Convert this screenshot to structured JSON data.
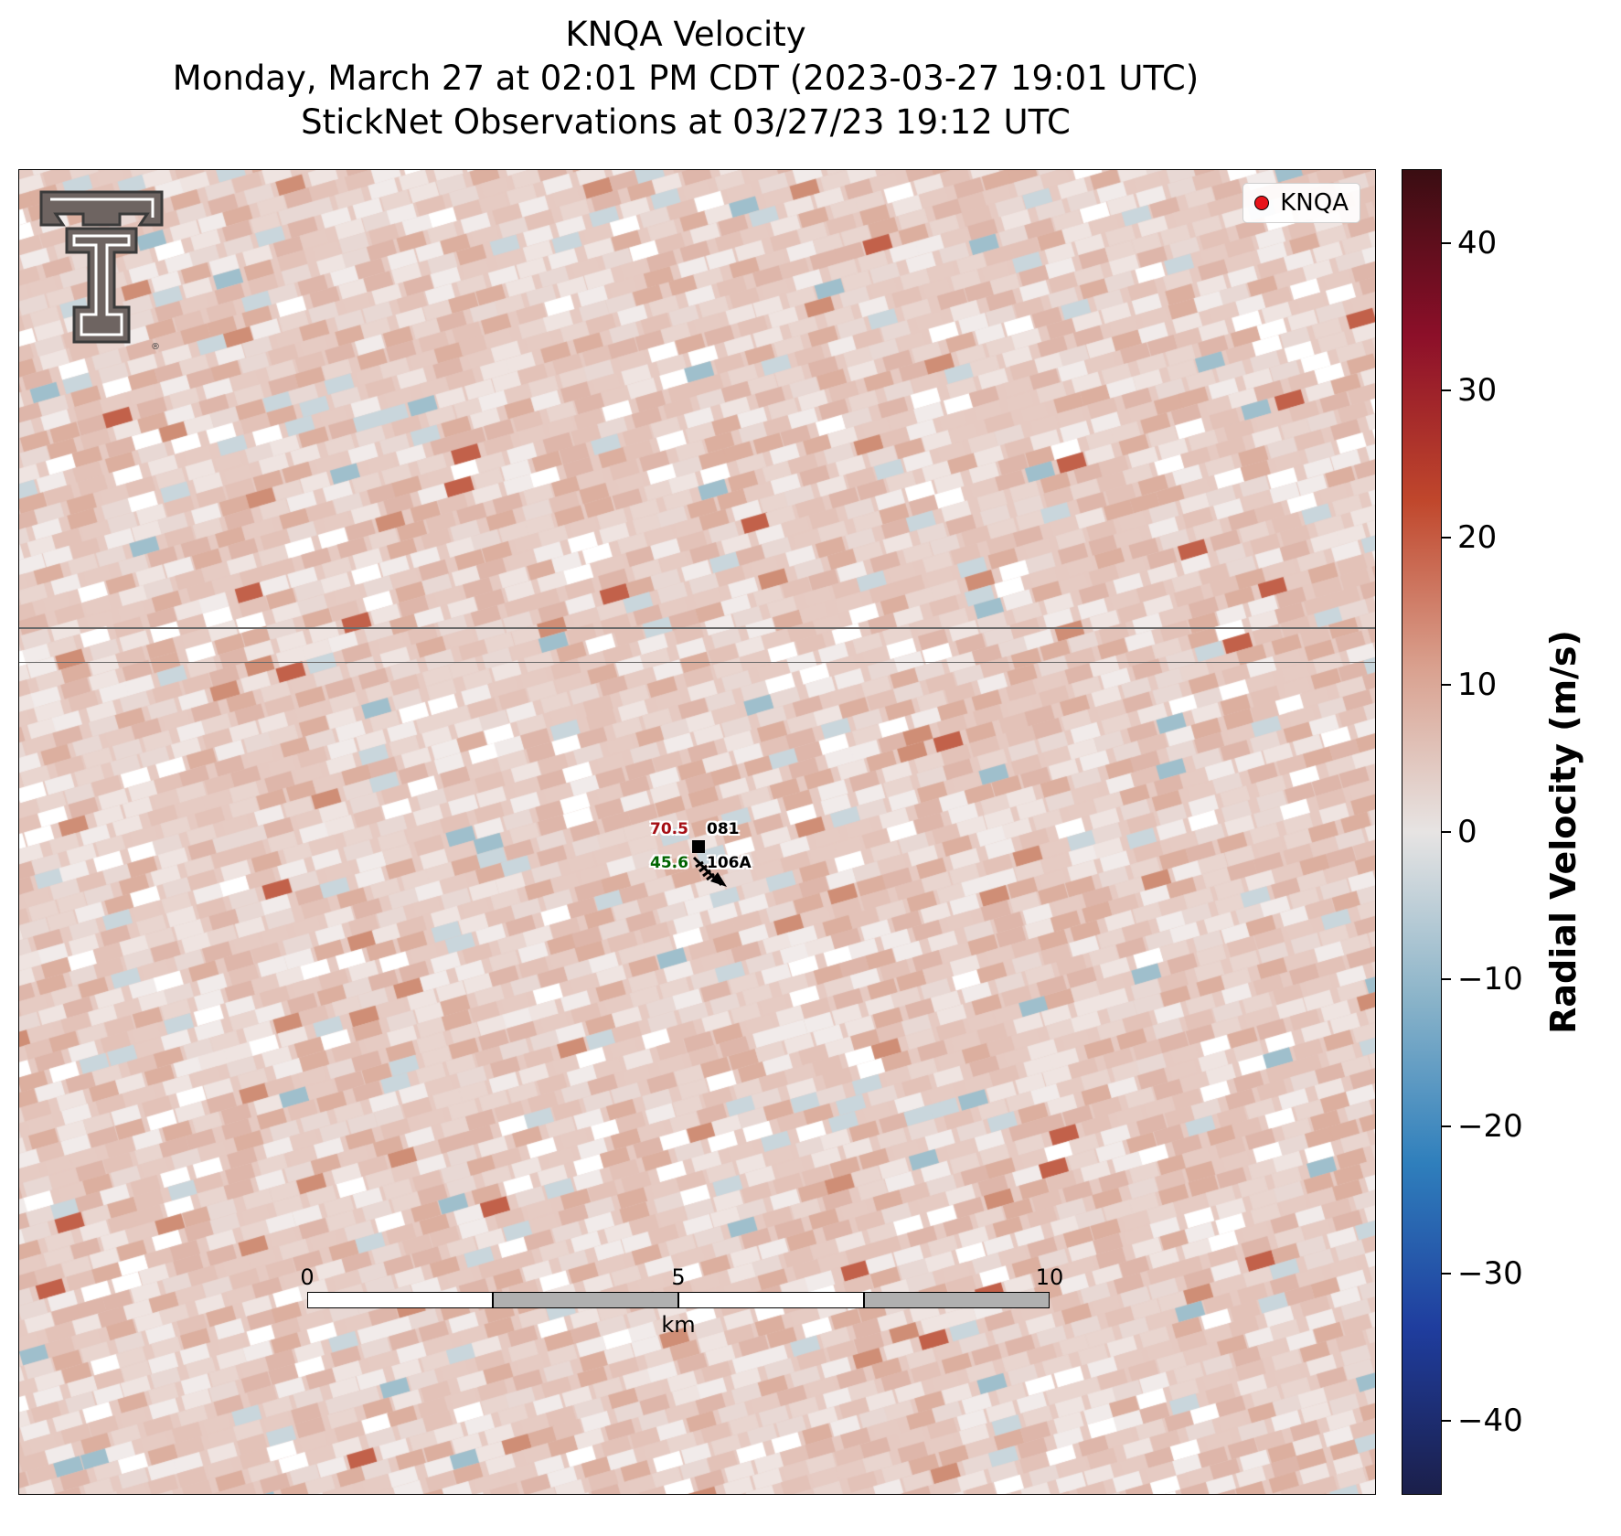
{
  "title": {
    "line1": "KNQA Velocity",
    "line2": "Monday, March 27 at 02:01 PM CDT (2023-03-27 19:01 UTC)",
    "line3": "StickNet Observations at 03/27/23 19:12 UTC"
  },
  "legend": {
    "label": "KNQA",
    "marker_color": "#e8131a"
  },
  "logo": {
    "name": "texas-tech-double-t-logo",
    "mark": "®"
  },
  "stations": [
    {
      "value": "70.5",
      "value_color": "#a50f15",
      "id": "081"
    },
    {
      "value": "45.6",
      "value_color": "#006400",
      "id": "106A"
    }
  ],
  "scalebar": {
    "ticks": [
      "0",
      "5",
      "10"
    ],
    "unit": "km"
  },
  "colorbar": {
    "label": "Radial Velocity (m/s)",
    "ticks": [
      "40",
      "30",
      "20",
      "10",
      "0",
      "−10",
      "−20",
      "−30",
      "−40"
    ],
    "range": [
      -45,
      45
    ],
    "colors": [
      "#1b1f4a",
      "#1f3d9e",
      "#2f7fbc",
      "#8bb4c9",
      "#e7e4e3",
      "#d9a08e",
      "#c0472c",
      "#8c0f29",
      "#3a0d12"
    ]
  }
}
